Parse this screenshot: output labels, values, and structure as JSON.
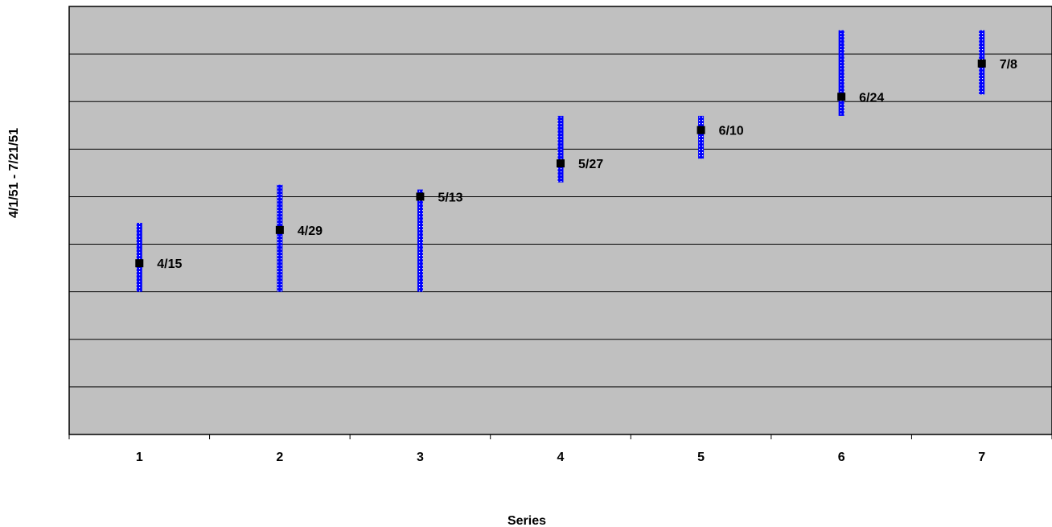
{
  "chart_data": {
    "type": "scatter",
    "title": "",
    "xlabel": "Series",
    "ylabel": "4/1/51 - 7/21/51",
    "categories": [
      "1",
      "2",
      "3",
      "4",
      "5",
      "6",
      "7"
    ],
    "points": [
      {
        "x": 1,
        "y": 36,
        "label": "4/15"
      },
      {
        "x": 2,
        "y": 43,
        "label": "4/29"
      },
      {
        "x": 3,
        "y": 50,
        "label": "5/13"
      },
      {
        "x": 4,
        "y": 57,
        "label": "5/27"
      },
      {
        "x": 5,
        "y": 64,
        "label": "6/10"
      },
      {
        "x": 6,
        "y": 71,
        "label": "6/24"
      },
      {
        "x": 7,
        "y": 78,
        "label": "7/8"
      }
    ],
    "ranges": [
      {
        "x": 1,
        "low": 30,
        "high": 44.5
      },
      {
        "x": 2,
        "low": 30,
        "high": 52.5
      },
      {
        "x": 3,
        "low": 30,
        "high": 51.5
      },
      {
        "x": 4,
        "low": 53,
        "high": 67
      },
      {
        "x": 5,
        "low": 58,
        "high": 67
      },
      {
        "x": 6,
        "low": 67,
        "high": 85
      },
      {
        "x": 7,
        "low": 71.5,
        "high": 85
      }
    ],
    "ylim": [
      0,
      90
    ],
    "ytick_step": 10,
    "grid": true,
    "legend": "none",
    "colors": {
      "plot_background": "#c0c0c0",
      "range_bar": "#0000ff",
      "marker": "#000000"
    }
  }
}
